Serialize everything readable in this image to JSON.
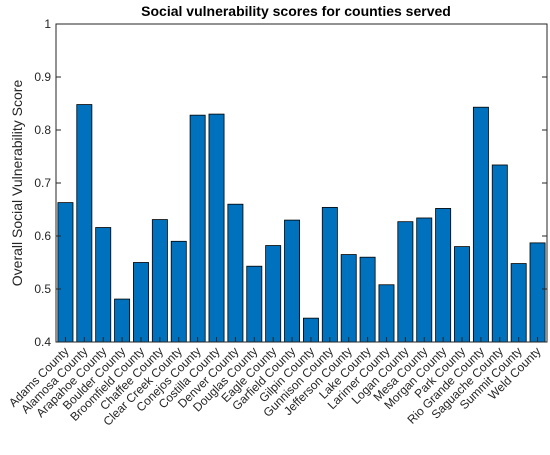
{
  "chart_data": {
    "type": "bar",
    "title": "Social vulnerability scores for counties served",
    "xlabel": "",
    "ylabel": "Overall Social Vulnerability Score",
    "ylim": [
      0.4,
      1.0
    ],
    "yticks": [
      "0.4",
      "0.5",
      "0.6",
      "0.7",
      "0.8",
      "0.9",
      "1"
    ],
    "categories": [
      "Adams County",
      "Alamosa County",
      "Arapahoe County",
      "Boulder County",
      "Broomfield County",
      "Chaffee County",
      "Clear Creek County",
      "Conejos County",
      "Costilla County",
      "Denver County",
      "Douglas County",
      "Eagle County",
      "Garfield County",
      "Gilpin County",
      "Gunnison County",
      "Jefferson County",
      "Lake County",
      "Larimer County",
      "Logan County",
      "Mesa County",
      "Morgan County",
      "Park County",
      "Rio Grande County",
      "Saguache County",
      "Summit County",
      "Weld County"
    ],
    "values": [
      0.663,
      0.848,
      0.616,
      0.481,
      0.55,
      0.631,
      0.59,
      0.828,
      0.83,
      0.66,
      0.543,
      0.582,
      0.63,
      0.445,
      0.654,
      0.565,
      0.56,
      0.508,
      0.627,
      0.634,
      0.652,
      0.58,
      0.843,
      0.734,
      0.548,
      0.587
    ],
    "bar_color": "#0072bd",
    "grid": false,
    "legend": "none"
  }
}
